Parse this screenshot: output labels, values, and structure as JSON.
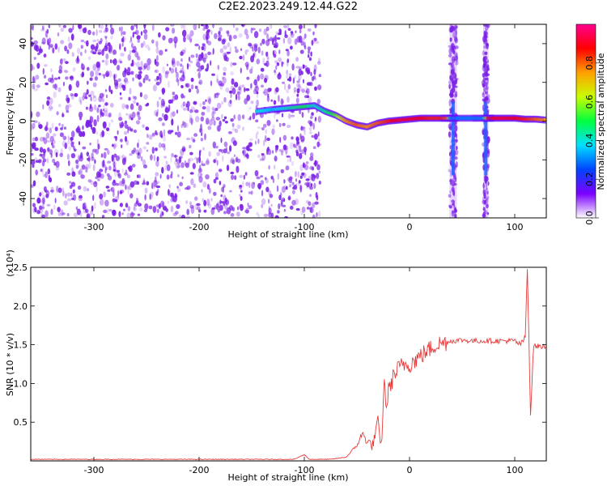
{
  "title": "C2E2.2023.249.12.44.G22",
  "chart_data": [
    {
      "type": "heatmap",
      "xlabel": "Height of straight line (km)",
      "ylabel": "Frequency (Hz)",
      "xlim": [
        -360,
        130
      ],
      "ylim": [
        -50,
        50
      ],
      "xticks": [
        -300,
        -200,
        -100,
        0,
        100
      ],
      "yticks": [
        -40,
        -20,
        0,
        20,
        40
      ],
      "colorbar": {
        "label": "Normalized spectral amplitude",
        "range": [
          0.0,
          1.0
        ],
        "ticks": [
          "0.0",
          "0.2",
          "0.4",
          "0.6",
          "0.8"
        ],
        "colormap": [
          "#ffffff",
          "#7b00ff",
          "#0044ff",
          "#00e0ff",
          "#00ff40",
          "#c8ff00",
          "#ffa000",
          "#ff0000",
          "#ff0090"
        ]
      },
      "noise_color": "#7a1fe6",
      "noise_extent_x": [
        -360,
        -85
      ],
      "interference_bands": [
        [
          38,
          45
        ],
        [
          70,
          75
        ]
      ],
      "signal_track": {
        "x": [
          -145,
          -130,
          -120,
          -110,
          -100,
          -90,
          -80,
          -70,
          -60,
          -50,
          -40,
          -30,
          -20,
          -10,
          0,
          10,
          20,
          30,
          36,
          40,
          46,
          60,
          70,
          75,
          80,
          90,
          100,
          110,
          120,
          130
        ],
        "freq": [
          5,
          6,
          6.5,
          7,
          7.5,
          8,
          5,
          3,
          0,
          -2,
          -3,
          -1,
          0,
          0.5,
          1,
          1.5,
          1.5,
          1.5,
          1.5,
          1.5,
          1.5,
          1.5,
          1.5,
          1.5,
          1.5,
          1.5,
          1.5,
          1,
          1,
          0.5
        ],
        "amplitude": [
          0.4,
          0.35,
          0.4,
          0.45,
          0.5,
          0.4,
          0.45,
          0.55,
          0.75,
          0.8,
          0.75,
          0.8,
          0.85,
          0.9,
          0.9,
          0.88,
          0.85,
          0.85,
          0.8,
          0.3,
          0.3,
          0.3,
          0.3,
          0.85,
          0.9,
          0.9,
          0.88,
          0.85,
          0.8,
          0.75
        ]
      }
    },
    {
      "type": "line",
      "xlabel": "Height of straight line (km)",
      "ylabel": "SNR (10 * v/v)",
      "scale_label": "(x10⁴)",
      "xlim": [
        -360,
        130
      ],
      "ylim": [
        0,
        2.5
      ],
      "xticks": [
        -300,
        -200,
        -100,
        0,
        100
      ],
      "yticks": [
        "0.5",
        "1.0",
        "1.5",
        "2.0",
        "2.5"
      ],
      "line_color": "#e83a3a",
      "series": [
        {
          "x": [
            -360,
            -300,
            -200,
            -150,
            -110,
            -100,
            -95,
            -90,
            -75,
            -60,
            -50,
            -45,
            -40,
            -35,
            -30,
            -27,
            -24,
            -22,
            -20,
            -15,
            -10,
            -5,
            0,
            5,
            10,
            15,
            20,
            25,
            30,
            40,
            50,
            60,
            70,
            80,
            90,
            100,
            105,
            108,
            110,
            112,
            115,
            118,
            120,
            125,
            130
          ],
          "y": [
            0.02,
            0.02,
            0.02,
            0.02,
            0.02,
            0.08,
            0.02,
            0.02,
            0.02,
            0.05,
            0.2,
            0.35,
            0.25,
            0.2,
            0.5,
            0.15,
            1.0,
            0.7,
            0.9,
            1.1,
            1.2,
            1.25,
            1.25,
            1.3,
            1.35,
            1.4,
            1.45,
            1.5,
            1.52,
            1.55,
            1.56,
            1.55,
            1.55,
            1.55,
            1.55,
            1.55,
            1.5,
            1.55,
            1.6,
            2.5,
            0.6,
            1.5,
            1.48,
            1.48,
            1.47
          ]
        }
      ]
    }
  ]
}
